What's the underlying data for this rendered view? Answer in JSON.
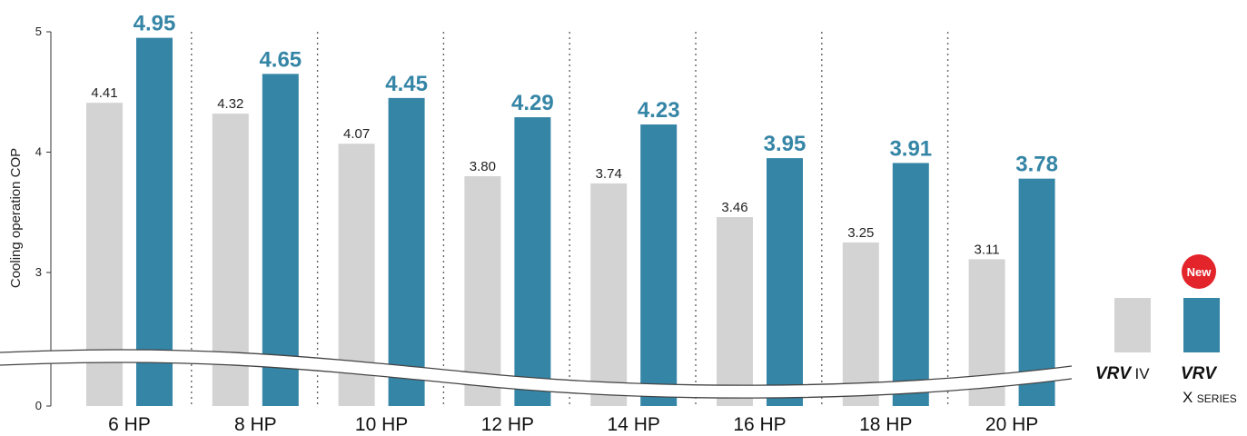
{
  "colors": {
    "series_a": "#d3d3d3",
    "series_b": "#3585a6",
    "new_badge": "#e3242b"
  },
  "chart_data": {
    "type": "bar",
    "title": "",
    "ylabel": "Cooling operation COP",
    "xlabel": "",
    "categories": [
      "6 HP",
      "8 HP",
      "10 HP",
      "12 HP",
      "14 HP",
      "16 HP",
      "18 HP",
      "20 HP"
    ],
    "y_ticks": [
      "0",
      "3",
      "4",
      "5"
    ],
    "axis_break": "between 0 and 3",
    "ylim": [
      0,
      5
    ],
    "grid": false,
    "category_separators": "dotted",
    "legend_placement": "right",
    "series": [
      {
        "name": "VRV IV",
        "values": [
          4.41,
          4.32,
          4.07,
          3.8,
          3.74,
          3.46,
          3.25,
          3.11
        ],
        "labels": [
          "4.41",
          "4.32",
          "4.07",
          "3.80",
          "3.74",
          "3.46",
          "3.25",
          "3.11"
        ]
      },
      {
        "name": "VRV X SERIES",
        "values": [
          4.95,
          4.65,
          4.45,
          4.29,
          4.23,
          3.95,
          3.91,
          3.78
        ],
        "labels": [
          "4.95",
          "4.65",
          "4.45",
          "4.29",
          "4.23",
          "3.95",
          "3.91",
          "3.78"
        ]
      }
    ]
  },
  "legend": {
    "badge": "New",
    "series_a_brand": "VRV",
    "series_a_suffix": "IV",
    "series_b_brand": "VRV",
    "series_b_suffix_x": "X",
    "series_b_suffix_series": "SERIES"
  }
}
